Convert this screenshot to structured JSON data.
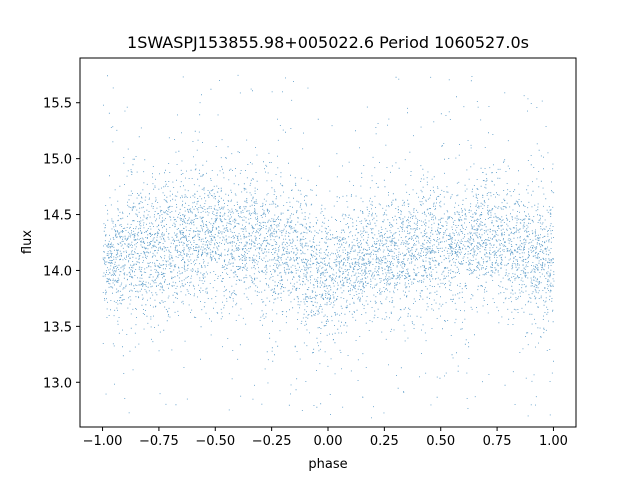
{
  "chart_data": {
    "type": "scatter",
    "title": "1SWASPJ153855.98+005022.6 Period 1060527.0s",
    "xlabel": "phase",
    "ylabel": "flux",
    "xlim": [
      -1.1,
      1.1
    ],
    "ylim": [
      12.6,
      15.9
    ],
    "xticks": [
      -1.0,
      -0.75,
      -0.5,
      -0.25,
      0.0,
      0.25,
      0.5,
      0.75,
      1.0
    ],
    "xtick_labels": [
      "−1.00",
      "−0.75",
      "−0.50",
      "−0.25",
      "0.00",
      "0.25",
      "0.50",
      "0.75",
      "1.00"
    ],
    "yticks": [
      13.0,
      13.5,
      14.0,
      14.5,
      15.0,
      15.5
    ],
    "ytick_labels": [
      "13.0",
      "13.5",
      "14.0",
      "14.5",
      "15.0",
      "15.5"
    ],
    "grid": false,
    "marker_color": "#1f77b4",
    "series": [
      {
        "x": [
          -1.0,
          -0.95,
          -0.9,
          -0.85,
          -0.8,
          -0.75,
          -0.7,
          -0.65,
          -0.6,
          -0.55,
          -0.5,
          -0.45,
          -0.4,
          -0.35,
          -0.3,
          -0.25,
          -0.2,
          -0.15,
          -0.1,
          -0.05,
          0.0,
          0.05,
          0.1,
          0.15,
          0.2,
          0.25,
          0.3,
          0.35,
          0.4,
          0.45,
          0.5,
          0.55,
          0.6,
          0.65,
          0.7,
          0.75,
          0.8,
          0.85,
          0.9,
          0.95,
          1.0
        ],
        "y": [
          14.05,
          14.1,
          14.15,
          14.2,
          14.2,
          14.22,
          14.2,
          14.25,
          14.28,
          14.3,
          14.28,
          14.25,
          14.28,
          14.3,
          14.3,
          14.25,
          14.2,
          14.15,
          14.05,
          13.95,
          13.95,
          14.0,
          14.05,
          14.1,
          14.12,
          14.1,
          14.15,
          14.18,
          14.2,
          14.22,
          14.2,
          14.22,
          14.25,
          14.3,
          14.32,
          14.3,
          14.25,
          14.2,
          14.15,
          14.1,
          14.05
        ],
        "spread": [
          0.25,
          0.25,
          0.25,
          0.27,
          0.27,
          0.27,
          0.27,
          0.27,
          0.27,
          0.28,
          0.28,
          0.27,
          0.27,
          0.27,
          0.27,
          0.27,
          0.27,
          0.27,
          0.27,
          0.28,
          0.28,
          0.27,
          0.27,
          0.26,
          0.26,
          0.26,
          0.26,
          0.26,
          0.26,
          0.26,
          0.26,
          0.26,
          0.26,
          0.27,
          0.27,
          0.27,
          0.27,
          0.26,
          0.26,
          0.26,
          0.25
        ]
      }
    ]
  }
}
